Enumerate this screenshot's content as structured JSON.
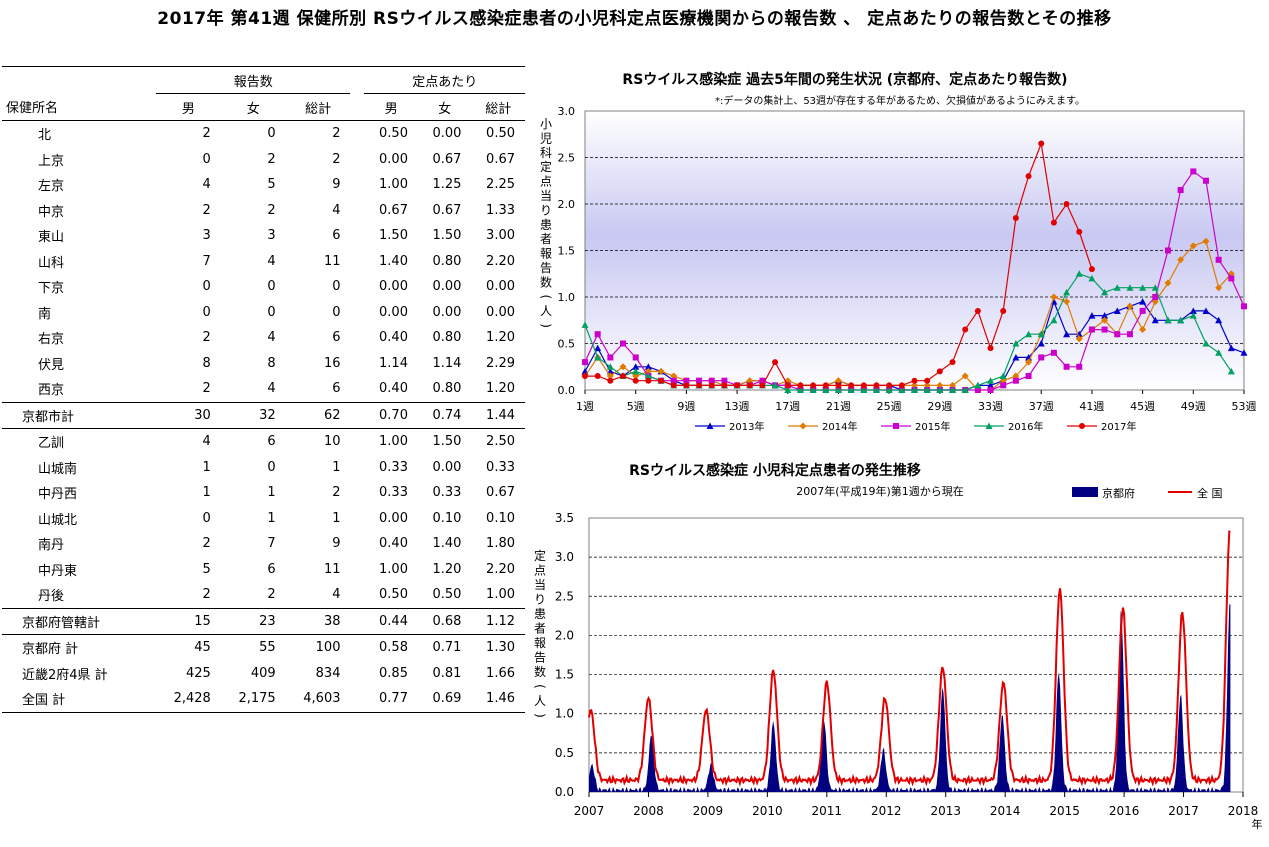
{
  "page_title": "2017年 第41週 保健所別 RSウイルス感染症患者の小児科定点医療機関からの報告数 、 定点あたりの報告数とその推移",
  "table": {
    "group_headers": [
      "報告数",
      "定点あたり"
    ],
    "columns": [
      "保健所名",
      "男",
      "女",
      "総計",
      "男",
      "女",
      "総計"
    ],
    "rows": [
      {
        "name": "北",
        "type": "item",
        "v": [
          "2",
          "0",
          "2",
          "0.50",
          "0.00",
          "0.50"
        ]
      },
      {
        "name": "上京",
        "type": "item",
        "v": [
          "0",
          "2",
          "2",
          "0.00",
          "0.67",
          "0.67"
        ]
      },
      {
        "name": "左京",
        "type": "item",
        "v": [
          "4",
          "5",
          "9",
          "1.00",
          "1.25",
          "2.25"
        ]
      },
      {
        "name": "中京",
        "type": "item",
        "v": [
          "2",
          "2",
          "4",
          "0.67",
          "0.67",
          "1.33"
        ]
      },
      {
        "name": "東山",
        "type": "item",
        "v": [
          "3",
          "3",
          "6",
          "1.50",
          "1.50",
          "3.00"
        ]
      },
      {
        "name": "山科",
        "type": "item",
        "v": [
          "7",
          "4",
          "11",
          "1.40",
          "0.80",
          "2.20"
        ]
      },
      {
        "name": "下京",
        "type": "item",
        "v": [
          "0",
          "0",
          "0",
          "0.00",
          "0.00",
          "0.00"
        ]
      },
      {
        "name": "南",
        "type": "item",
        "v": [
          "0",
          "0",
          "0",
          "0.00",
          "0.00",
          "0.00"
        ]
      },
      {
        "name": "右京",
        "type": "item",
        "v": [
          "2",
          "4",
          "6",
          "0.40",
          "0.80",
          "1.20"
        ]
      },
      {
        "name": "伏見",
        "type": "item",
        "v": [
          "8",
          "8",
          "16",
          "1.14",
          "1.14",
          "2.29"
        ]
      },
      {
        "name": "西京",
        "type": "item",
        "v": [
          "2",
          "4",
          "6",
          "0.40",
          "0.80",
          "1.20"
        ]
      },
      {
        "name": "京都市計",
        "type": "subtotal",
        "v": [
          "30",
          "32",
          "62",
          "0.70",
          "0.74",
          "1.44"
        ]
      },
      {
        "name": "乙訓",
        "type": "item",
        "v": [
          "4",
          "6",
          "10",
          "1.00",
          "1.50",
          "2.50"
        ]
      },
      {
        "name": "山城南",
        "type": "item",
        "v": [
          "1",
          "0",
          "1",
          "0.33",
          "0.00",
          "0.33"
        ]
      },
      {
        "name": "中丹西",
        "type": "item",
        "v": [
          "1",
          "1",
          "2",
          "0.33",
          "0.33",
          "0.67"
        ]
      },
      {
        "name": "山城北",
        "type": "item",
        "v": [
          "0",
          "1",
          "1",
          "0.00",
          "0.10",
          "0.10"
        ]
      },
      {
        "name": "南丹",
        "type": "item",
        "v": [
          "2",
          "7",
          "9",
          "0.40",
          "1.40",
          "1.80"
        ]
      },
      {
        "name": "中丹東",
        "type": "item",
        "v": [
          "5",
          "6",
          "11",
          "1.00",
          "1.20",
          "2.20"
        ]
      },
      {
        "name": "丹後",
        "type": "item",
        "v": [
          "2",
          "2",
          "4",
          "0.50",
          "0.50",
          "1.00"
        ]
      },
      {
        "name": "京都府管轄計",
        "type": "subtotal",
        "v": [
          "15",
          "23",
          "38",
          "0.44",
          "0.68",
          "1.12"
        ]
      },
      {
        "name": "京都府 計",
        "type": "total",
        "v": [
          "45",
          "55",
          "100",
          "0.58",
          "0.71",
          "1.30"
        ]
      },
      {
        "name": "近畿2府4県 計",
        "type": "total",
        "v": [
          "425",
          "409",
          "834",
          "0.85",
          "0.81",
          "1.66"
        ]
      },
      {
        "name": "全国 計",
        "type": "total",
        "v": [
          "2,428",
          "2,175",
          "4,603",
          "0.77",
          "0.69",
          "1.46"
        ]
      }
    ]
  },
  "chart_data": [
    {
      "type": "line",
      "title": "RSウイルス感染症 過去5年間の発生状況 (京都府、定点あたり報告数)",
      "subtitle": "*:データの集計上、53週が存在する年があるため、欠損値があるようにみえます。",
      "ylabel": "小児科定点当り患者報告数(人)",
      "ylim": [
        0,
        3.0
      ],
      "yticks": [
        "0.0",
        "0.5",
        "1.0",
        "1.5",
        "2.0",
        "2.5",
        "3.0"
      ],
      "xticks": [
        "1週",
        "5週",
        "9週",
        "13週",
        "17週",
        "21週",
        "25週",
        "29週",
        "33週",
        "37週",
        "41週",
        "45週",
        "49週",
        "53週"
      ],
      "x_range": [
        1,
        53
      ],
      "legend_position": "bottom",
      "series": [
        {
          "name": "2013年",
          "color": "#0000cc",
          "marker": "triangle",
          "values": [
            0.2,
            0.45,
            0.2,
            0.15,
            0.25,
            0.25,
            0.2,
            0.1,
            0.05,
            0.05,
            0.05,
            0.05,
            0.05,
            0.1,
            0.1,
            0.05,
            0.05,
            0.05,
            0.05,
            0.05,
            0.1,
            0.05,
            0.05,
            0.05,
            0.05,
            0.0,
            0.0,
            0.0,
            0.0,
            0.0,
            0.0,
            0.05,
            0.05,
            0.1,
            0.35,
            0.35,
            0.5,
            0.95,
            0.6,
            0.6,
            0.8,
            0.8,
            0.85,
            0.9,
            0.95,
            0.75,
            0.75,
            0.75,
            0.85,
            0.85,
            0.75,
            0.45,
            0.4
          ]
        },
        {
          "name": "2014年",
          "color": "#e07b00",
          "marker": "diamond",
          "values": [
            0.15,
            0.35,
            0.15,
            0.25,
            0.15,
            0.2,
            0.2,
            0.15,
            0.1,
            0.1,
            0.1,
            0.05,
            0.05,
            0.1,
            0.1,
            0.05,
            0.1,
            0.05,
            0.05,
            0.05,
            0.1,
            0.05,
            0.05,
            0.05,
            0.05,
            0.05,
            0.05,
            0.05,
            0.05,
            0.05,
            0.15,
            0.0,
            0.0,
            0.1,
            0.15,
            0.3,
            0.6,
            1.0,
            0.95,
            0.55,
            0.65,
            0.75,
            0.6,
            0.9,
            0.65,
            0.95,
            1.15,
            1.4,
            1.55,
            1.6,
            1.1,
            1.25,
            null
          ]
        },
        {
          "name": "2015年",
          "color": "#cc00cc",
          "marker": "square",
          "values": [
            0.3,
            0.6,
            0.35,
            0.5,
            0.35,
            0.15,
            0.1,
            0.1,
            0.1,
            0.1,
            0.1,
            0.1,
            0.05,
            0.05,
            0.1,
            0.05,
            0.05,
            0.0,
            0.0,
            0.0,
            0.0,
            0.0,
            0.0,
            0.0,
            0.0,
            0.0,
            0.0,
            0.0,
            0.0,
            0.0,
            0.0,
            0.0,
            0.0,
            0.05,
            0.1,
            0.15,
            0.35,
            0.4,
            0.25,
            0.25,
            0.65,
            0.65,
            0.6,
            0.6,
            0.85,
            1.0,
            1.5,
            2.15,
            2.35,
            2.25,
            1.4,
            1.2,
            0.9
          ]
        },
        {
          "name": "2016年",
          "color": "#00a060",
          "marker": "triangle",
          "values": [
            0.7,
            0.35,
            0.25,
            0.15,
            0.2,
            0.15,
            0.1,
            0.05,
            0.05,
            0.05,
            0.05,
            0.05,
            0.05,
            0.05,
            0.05,
            0.05,
            0.0,
            0.0,
            0.0,
            0.0,
            0.0,
            0.0,
            0.0,
            0.0,
            0.0,
            0.0,
            0.0,
            0.0,
            0.0,
            0.0,
            0.0,
            0.05,
            0.1,
            0.15,
            0.5,
            0.6,
            0.6,
            0.75,
            1.05,
            1.25,
            1.2,
            1.05,
            1.1,
            1.1,
            1.1,
            1.1,
            0.75,
            0.75,
            0.8,
            0.5,
            0.4,
            0.2,
            null
          ]
        },
        {
          "name": "2017年",
          "color": "#e00000",
          "marker": "circle",
          "values": [
            0.15,
            0.15,
            0.1,
            0.15,
            0.1,
            0.1,
            0.1,
            0.05,
            0.05,
            0.05,
            0.05,
            0.05,
            0.05,
            0.05,
            0.05,
            0.3,
            0.05,
            0.05,
            0.05,
            0.05,
            0.05,
            0.05,
            0.05,
            0.05,
            0.05,
            0.05,
            0.1,
            0.1,
            0.2,
            0.3,
            0.65,
            0.85,
            0.45,
            0.85,
            1.85,
            2.3,
            2.65,
            1.8,
            2.0,
            1.7,
            1.3,
            null,
            null,
            null,
            null,
            null,
            null,
            null,
            null,
            null,
            null,
            null,
            null
          ]
        }
      ]
    },
    {
      "type": "area",
      "title": "RSウイルス感染症 小児科定点患者の発生推移",
      "subtitle": "2007年(平成19年)第1週から現在",
      "ylabel": "定点当り患者報告数(人)",
      "xlabel_unit": "年",
      "ylim": [
        0,
        3.5
      ],
      "yticks": [
        "0.0",
        "0.5",
        "1.0",
        "1.5",
        "2.0",
        "2.5",
        "3.0",
        "3.5"
      ],
      "xticks": [
        "2007",
        "2008",
        "2009",
        "2010",
        "2011",
        "2012",
        "2013",
        "2014",
        "2015",
        "2016",
        "2017",
        "2018"
      ],
      "legend_position": "top-right",
      "series": [
        {
          "name": "京都府",
          "kind": "area",
          "color": "#000080",
          "peaks": [
            [
              2007.05,
              0.35
            ],
            [
              2008.05,
              0.75
            ],
            [
              2009.05,
              0.35
            ],
            [
              2010.1,
              0.9
            ],
            [
              2010.95,
              0.95
            ],
            [
              2011.95,
              0.55
            ],
            [
              2012.95,
              1.35
            ],
            [
              2013.95,
              1.0
            ],
            [
              2014.9,
              1.55
            ],
            [
              2015.95,
              2.35
            ],
            [
              2016.95,
              1.25
            ],
            [
              2017.78,
              2.45
            ]
          ]
        },
        {
          "name": "全 国",
          "kind": "line",
          "color": "#e00000",
          "peaks": [
            [
              2007.03,
              1.05
            ],
            [
              2008.0,
              1.2
            ],
            [
              2008.97,
              1.05
            ],
            [
              2010.1,
              1.55
            ],
            [
              2011.0,
              1.4
            ],
            [
              2011.98,
              1.2
            ],
            [
              2012.95,
              1.6
            ],
            [
              2013.97,
              1.4
            ],
            [
              2014.92,
              2.6
            ],
            [
              2015.98,
              2.35
            ],
            [
              2016.98,
              2.3
            ],
            [
              2017.78,
              3.35
            ]
          ]
        }
      ]
    }
  ]
}
